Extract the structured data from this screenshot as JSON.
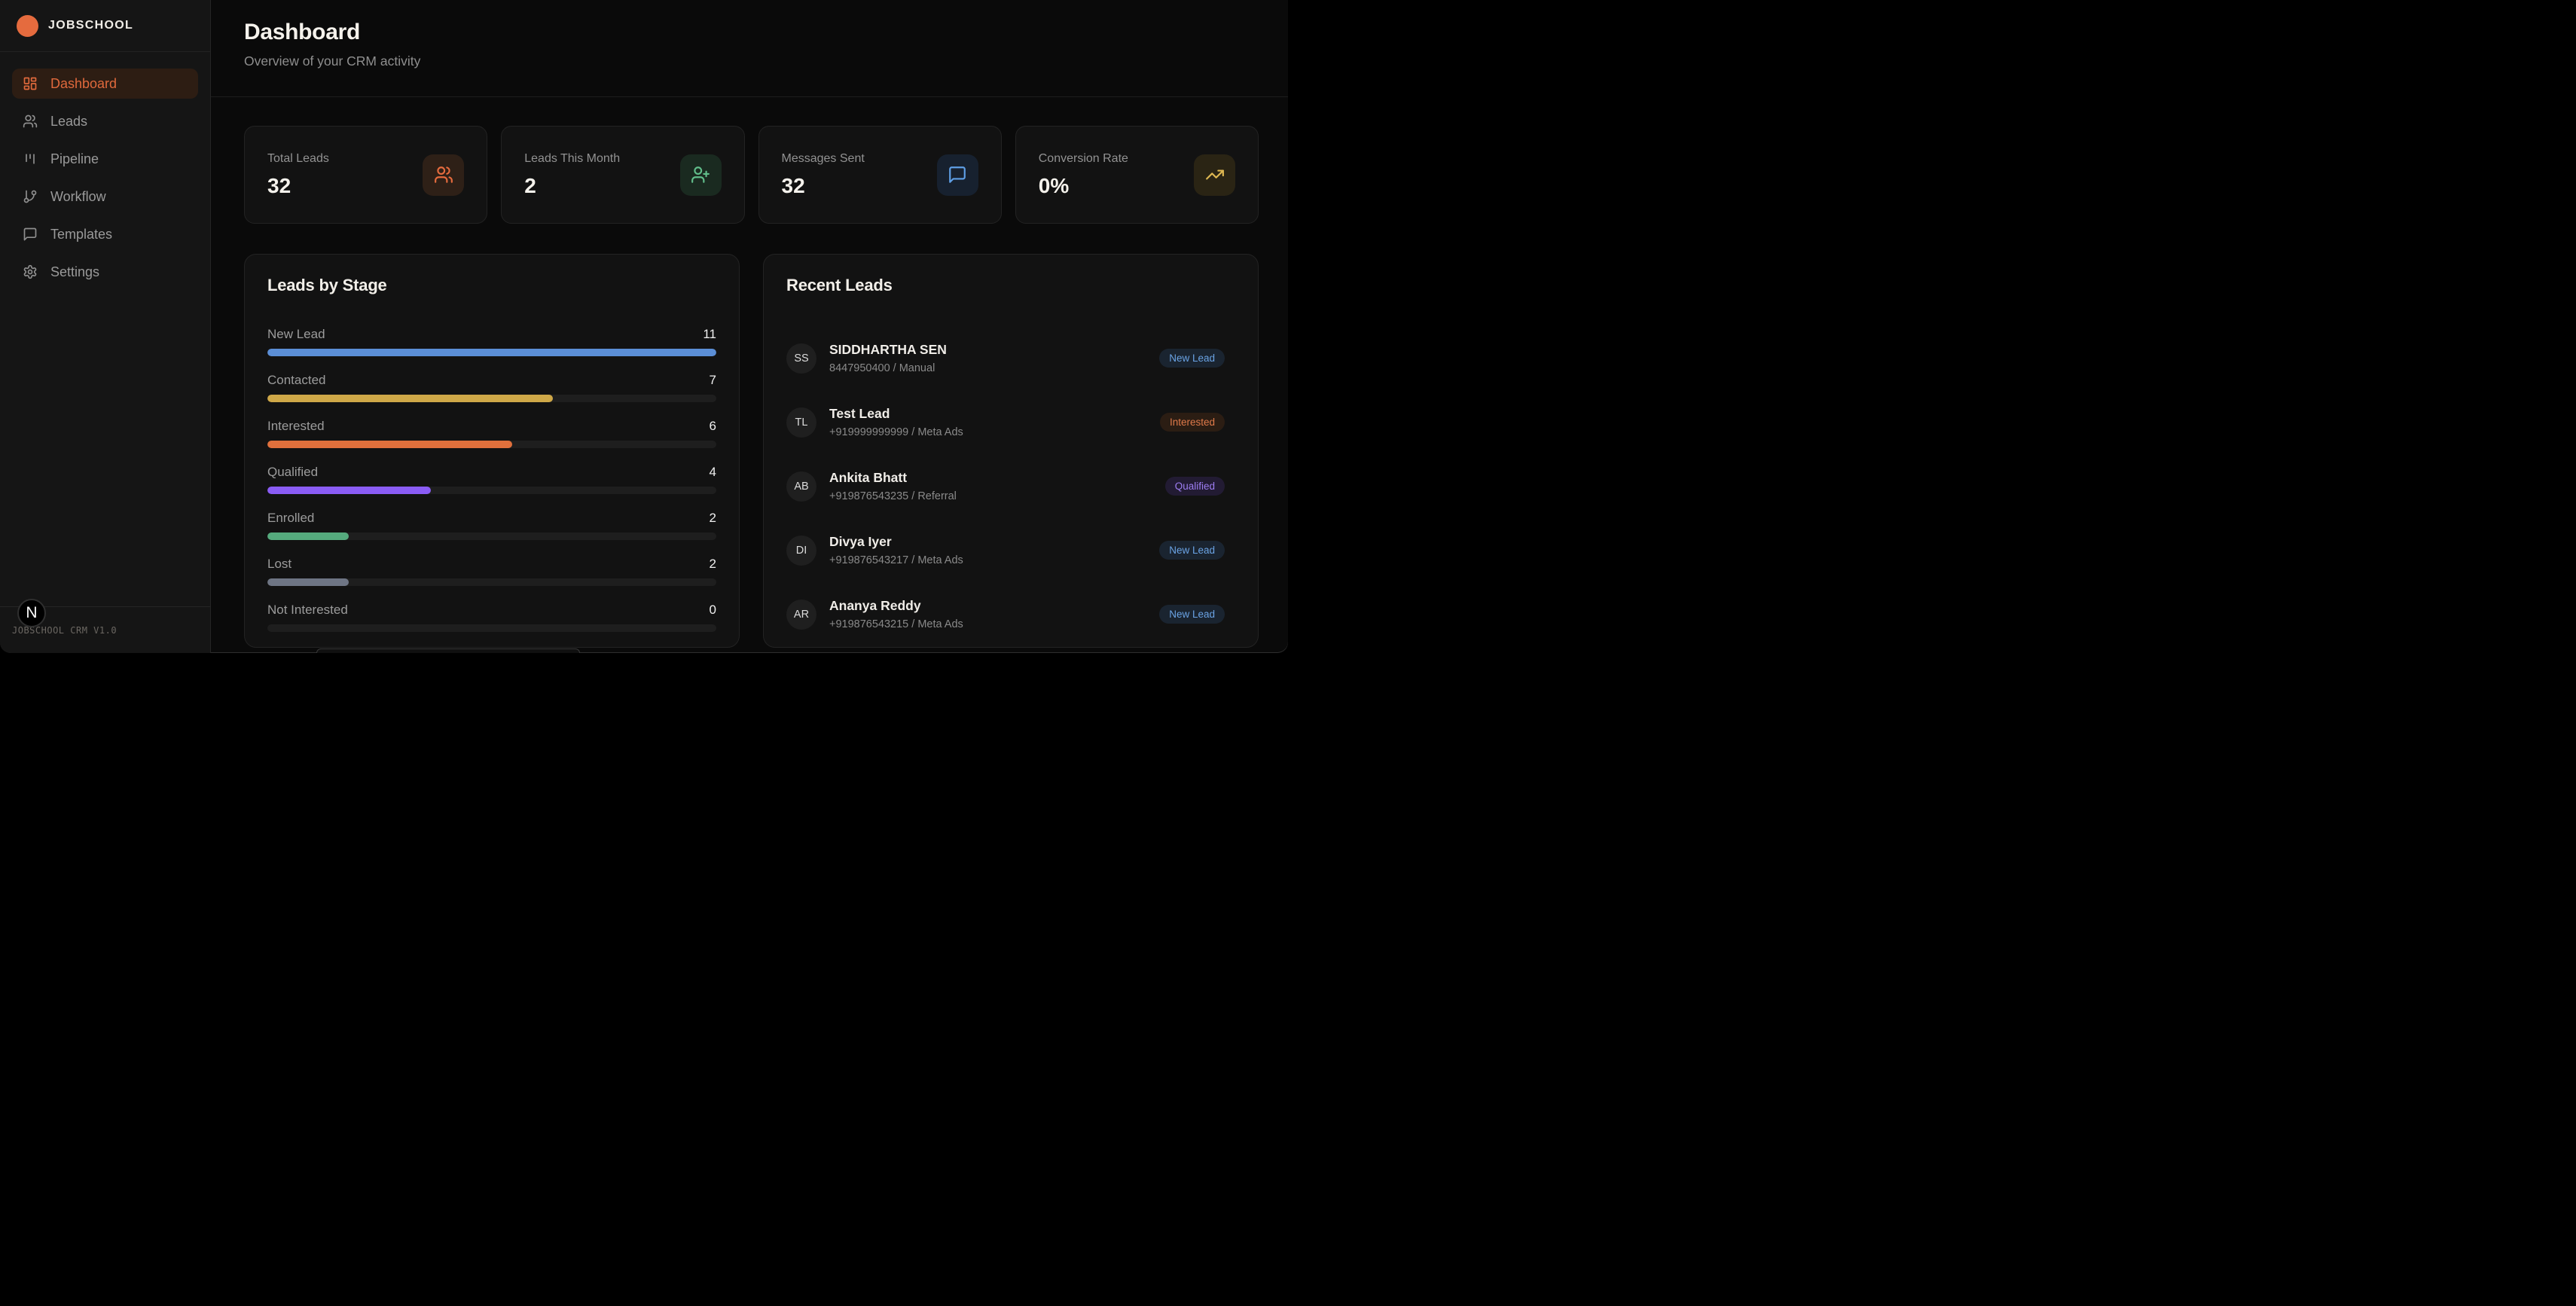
{
  "brand": {
    "name": "JOBSCHOOL",
    "footer": "JOBSCHOOL CRM V1.0",
    "dev_badge": "N",
    "logo_color": "#e56b3e"
  },
  "sidebar": {
    "items": [
      {
        "label": "Dashboard",
        "icon": "layout-dashboard-icon",
        "active": true
      },
      {
        "label": "Leads",
        "icon": "users-icon",
        "active": false
      },
      {
        "label": "Pipeline",
        "icon": "kanban-icon",
        "active": false
      },
      {
        "label": "Workflow",
        "icon": "git-branch-icon",
        "active": false
      },
      {
        "label": "Templates",
        "icon": "message-square-icon",
        "active": false
      },
      {
        "label": "Settings",
        "icon": "gear-icon",
        "active": false
      }
    ],
    "active_text_color": "#e0693c",
    "active_bg_color": "#2d1d13"
  },
  "header": {
    "title": "Dashboard",
    "subtitle": "Overview of your CRM activity"
  },
  "stats": [
    {
      "label": "Total Leads",
      "value": "32",
      "icon": "users-icon",
      "icon_color": "#e56b3e",
      "tile_bg": "#2e2017"
    },
    {
      "label": "Leads This Month",
      "value": "2",
      "icon": "user-plus-icon",
      "icon_color": "#61bd8a",
      "tile_bg": "#1a2a20"
    },
    {
      "label": "Messages Sent",
      "value": "32",
      "icon": "message-square-icon",
      "icon_color": "#5f9fe6",
      "tile_bg": "#17212f"
    },
    {
      "label": "Conversion Rate",
      "value": "0%",
      "icon": "trending-up-icon",
      "icon_color": "#dfb852",
      "tile_bg": "#2a2414"
    }
  ],
  "leads_by_stage": {
    "title": "Leads by Stage",
    "max": 11,
    "stages": [
      {
        "label": "New Lead",
        "value": 11,
        "color": "#5b8ed6"
      },
      {
        "label": "Contacted",
        "value": 7,
        "color": "#cfa848"
      },
      {
        "label": "Interested",
        "value": 6,
        "color": "#e0703c"
      },
      {
        "label": "Qualified",
        "value": 4,
        "color": "#8a5cf5"
      },
      {
        "label": "Enrolled",
        "value": 2,
        "color": "#55aa7d"
      },
      {
        "label": "Lost",
        "value": 2,
        "color": "#6e7584"
      },
      {
        "label": "Not Interested",
        "value": 0,
        "color": "#6e7584"
      }
    ]
  },
  "recent_leads": {
    "title": "Recent Leads",
    "leads": [
      {
        "initials": "SS",
        "name": "SIDDHARTHA SEN",
        "detail": "8447950400 / Manual",
        "badge": "New Lead",
        "badge_text_color": "#6aa3e4",
        "badge_bg": "#1a2430"
      },
      {
        "initials": "TL",
        "name": "Test Lead",
        "detail": "+919999999999 / Meta Ads",
        "badge": "Interested",
        "badge_text_color": "#e07a4a",
        "badge_bg": "#2b1d13"
      },
      {
        "initials": "AB",
        "name": "Ankita Bhatt",
        "detail": "+919876543235 / Referral",
        "badge": "Qualified",
        "badge_text_color": "#9d7df2",
        "badge_bg": "#221b33"
      },
      {
        "initials": "DI",
        "name": "Divya Iyer",
        "detail": "+919876543217 / Meta Ads",
        "badge": "New Lead",
        "badge_text_color": "#6aa3e4",
        "badge_bg": "#1a2430"
      },
      {
        "initials": "AR",
        "name": "Ananya Reddy",
        "detail": "+919876543215 / Meta Ads",
        "badge": "New Lead",
        "badge_text_color": "#6aa3e4",
        "badge_bg": "#1a2430"
      }
    ]
  }
}
